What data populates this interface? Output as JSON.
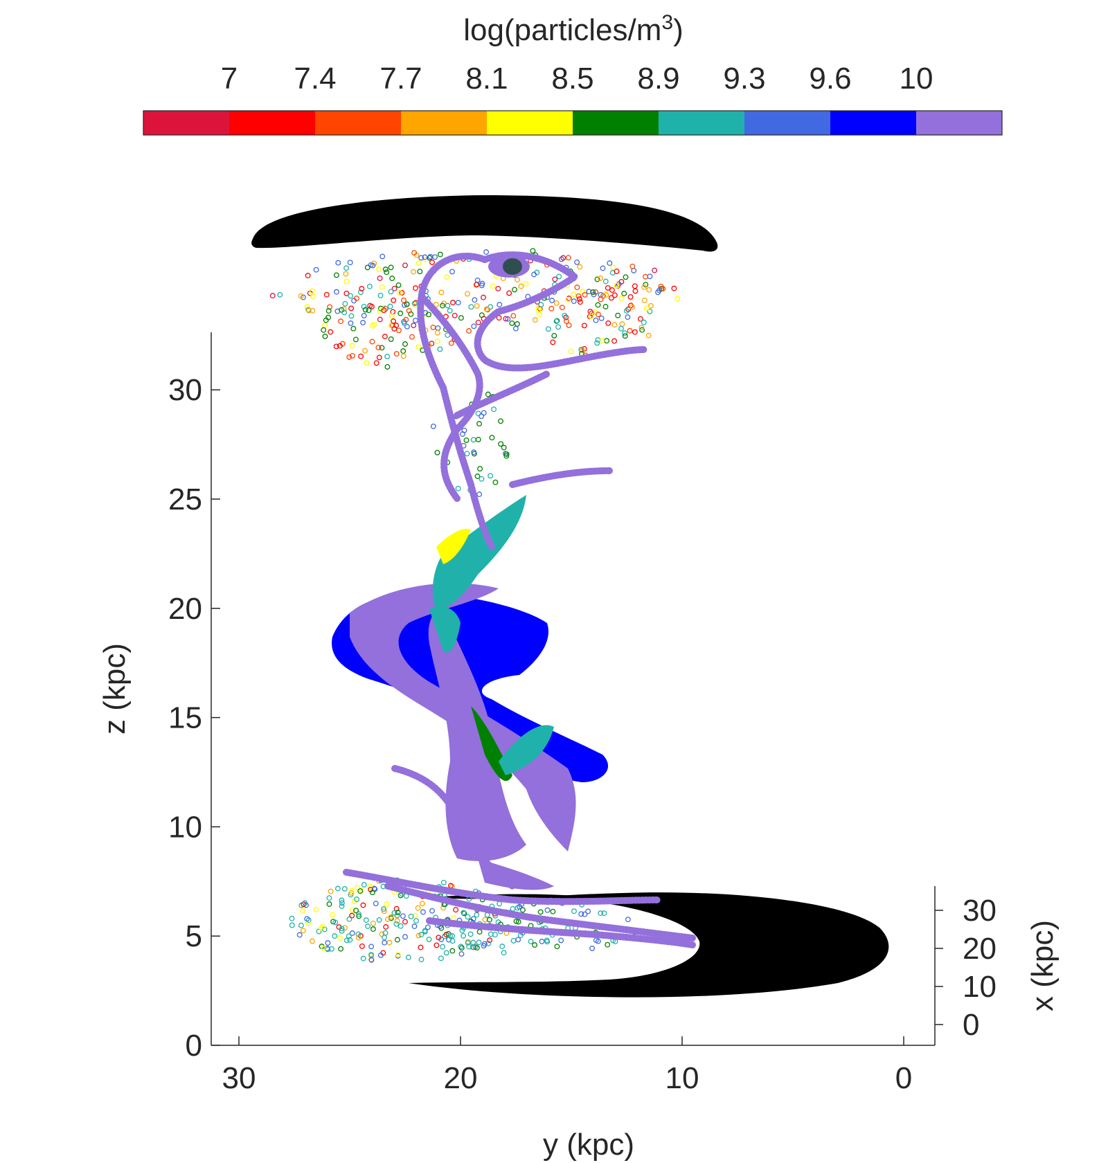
{
  "chart_data": {
    "type": "scatter",
    "projection": "3d",
    "colorbar": {
      "title_prefix": "log(particles/m",
      "title_sup": "3",
      "title_suffix": ")",
      "tick_labels": [
        "7",
        "7.4",
        "7.7",
        "8.1",
        "8.5",
        "8.9",
        "9.3",
        "9.6",
        "10"
      ],
      "colors": [
        "#dc143c",
        "#ff0000",
        "#ff4500",
        "#ffa500",
        "#ffff00",
        "#008000",
        "#20b2aa",
        "#4169e1",
        "#0000ff",
        "#9370db"
      ]
    },
    "axes": {
      "z": {
        "label": "z (kpc)",
        "ticks": [
          0,
          5,
          10,
          15,
          20,
          25,
          30
        ],
        "range": [
          0,
          32
        ]
      },
      "y": {
        "label": "y (kpc)",
        "ticks": [
          30,
          20,
          10,
          0
        ],
        "range": [
          31,
          -1
        ],
        "reversed": true
      },
      "x": {
        "label": "x (kpc)",
        "ticks": [
          0,
          10,
          20,
          30
        ],
        "range": [
          -5,
          36
        ]
      }
    },
    "disks": [
      {
        "name": "",
        "color": "#000000",
        "z_center": 35,
        "y_center": 19.5
      },
      {
        "name": "",
        "color": "#000000",
        "z_center": 4,
        "y_center": 10
      }
    ],
    "grid": false
  }
}
